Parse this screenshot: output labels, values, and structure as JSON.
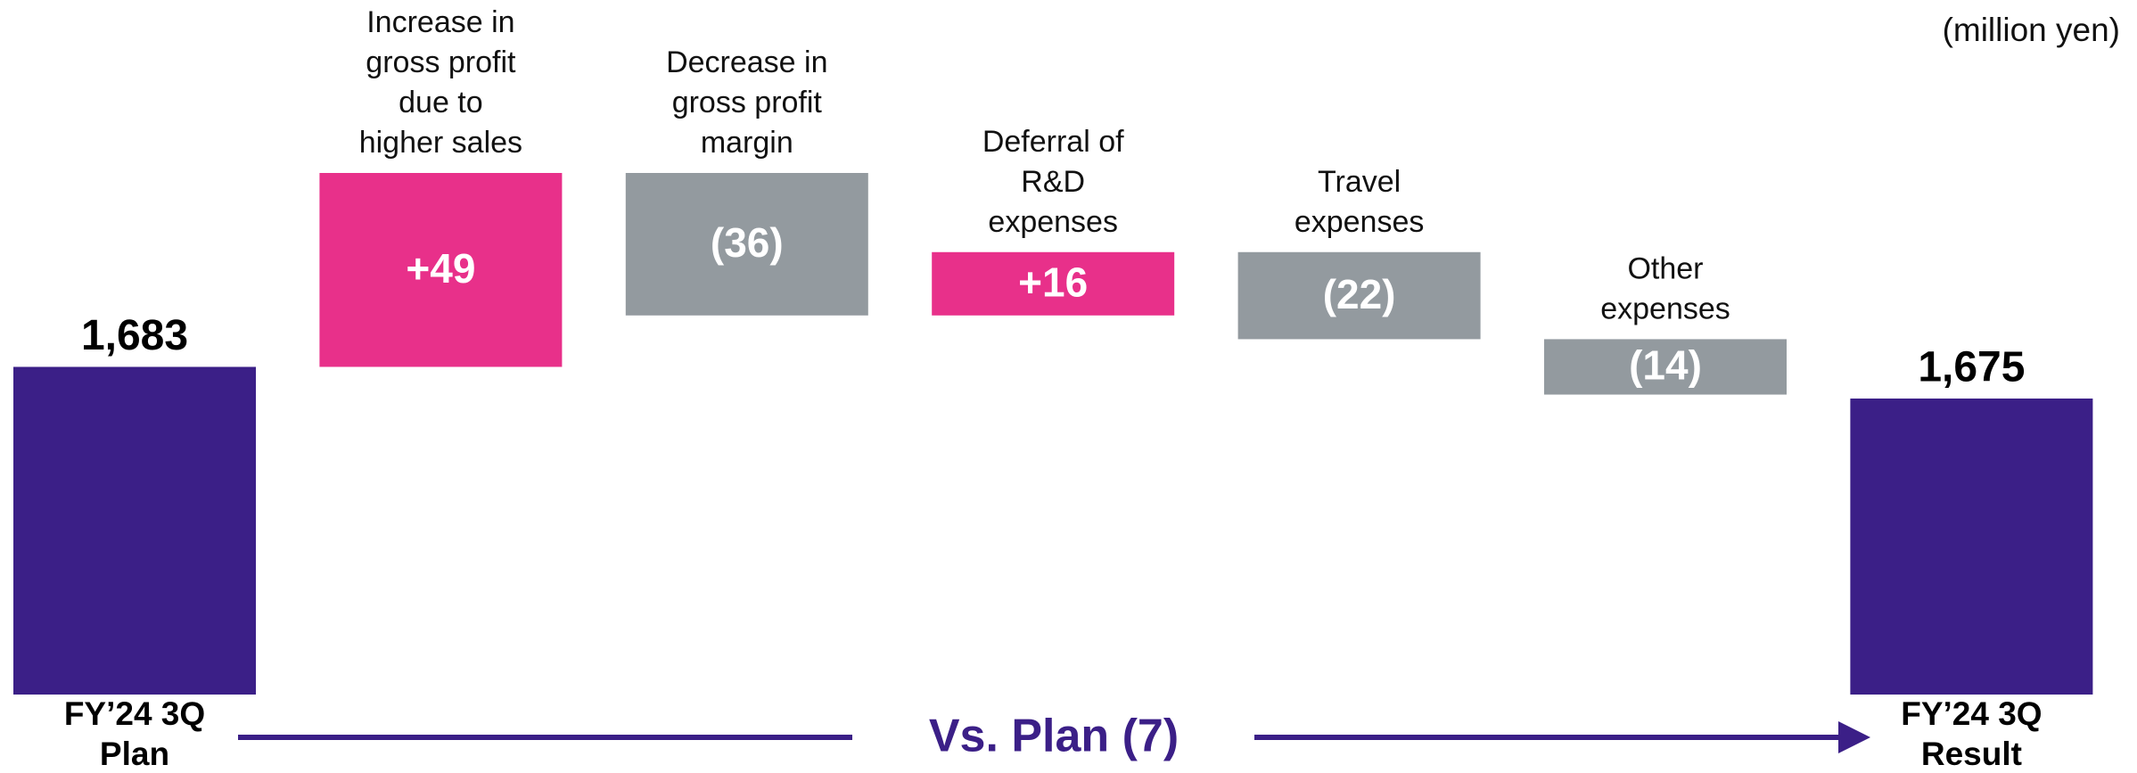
{
  "chart_data": {
    "type": "waterfall",
    "unit": "(million yen)",
    "categories": [
      [
        "FY’24 3Q",
        "Plan"
      ],
      [
        "Increase in",
        "gross profit",
        "due to",
        "higher sales"
      ],
      [
        "Decrease in",
        "gross profit",
        "margin"
      ],
      [
        "Deferral of",
        "R&D",
        "expenses"
      ],
      [
        "Travel",
        "expenses"
      ],
      [
        "Other",
        "expenses"
      ],
      [
        "FY’24 3Q",
        "Result"
      ]
    ],
    "measure": [
      "absolute",
      "relative",
      "relative",
      "relative",
      "relative",
      "relative",
      "absolute"
    ],
    "values": [
      1683,
      49,
      -36,
      16,
      -22,
      -14,
      1675
    ],
    "value_labels": [
      "1,683",
      "+49",
      "(36)",
      "+16",
      "(22)",
      "(14)",
      "1,675"
    ],
    "colors": {
      "total": "#3b1f87",
      "increase": "#e8308a",
      "decrease": "#939a9f"
    },
    "footer": "Vs. Plan (7)"
  }
}
